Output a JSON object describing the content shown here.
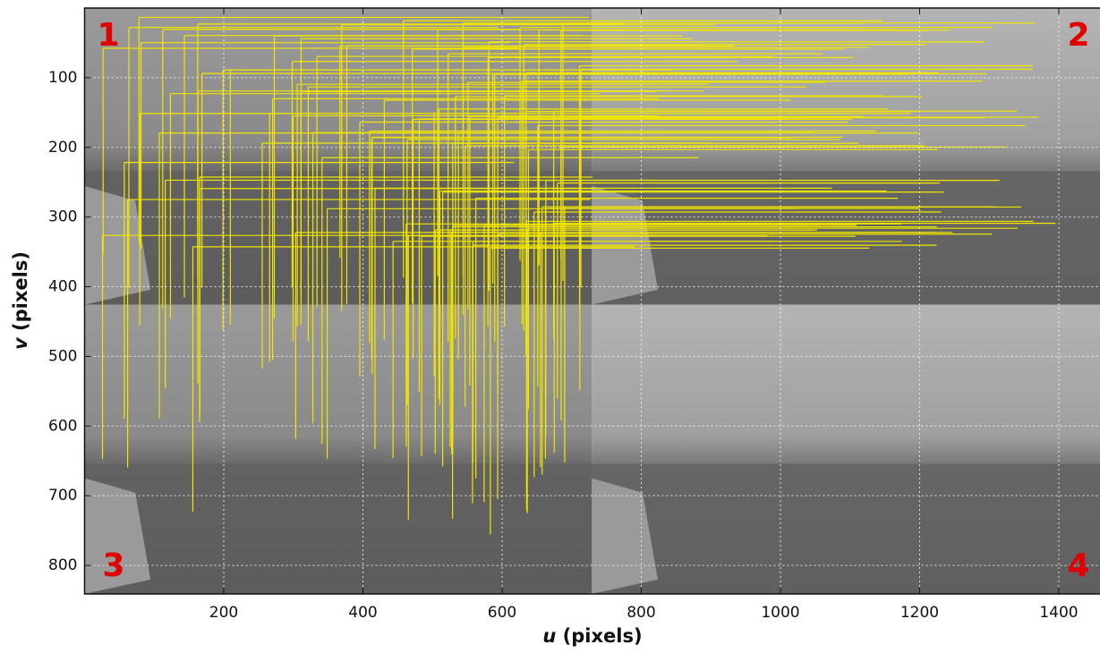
{
  "chart_data": {
    "type": "image",
    "xlabel_var": "u",
    "xlabel_unit": "(pixels)",
    "ylabel_var": "v",
    "ylabel_unit": "(pixels)",
    "xlim": [
      0,
      1460
    ],
    "ylim": [
      841,
      0
    ],
    "xticks": [
      200,
      400,
      600,
      800,
      1000,
      1200,
      1400
    ],
    "yticks": [
      100,
      200,
      300,
      400,
      500,
      600,
      700,
      800
    ],
    "grid": true,
    "quadrant_labels": [
      "1",
      "2",
      "3",
      "4"
    ],
    "label_color": "#e00000",
    "match_color": "#f2e600"
  }
}
